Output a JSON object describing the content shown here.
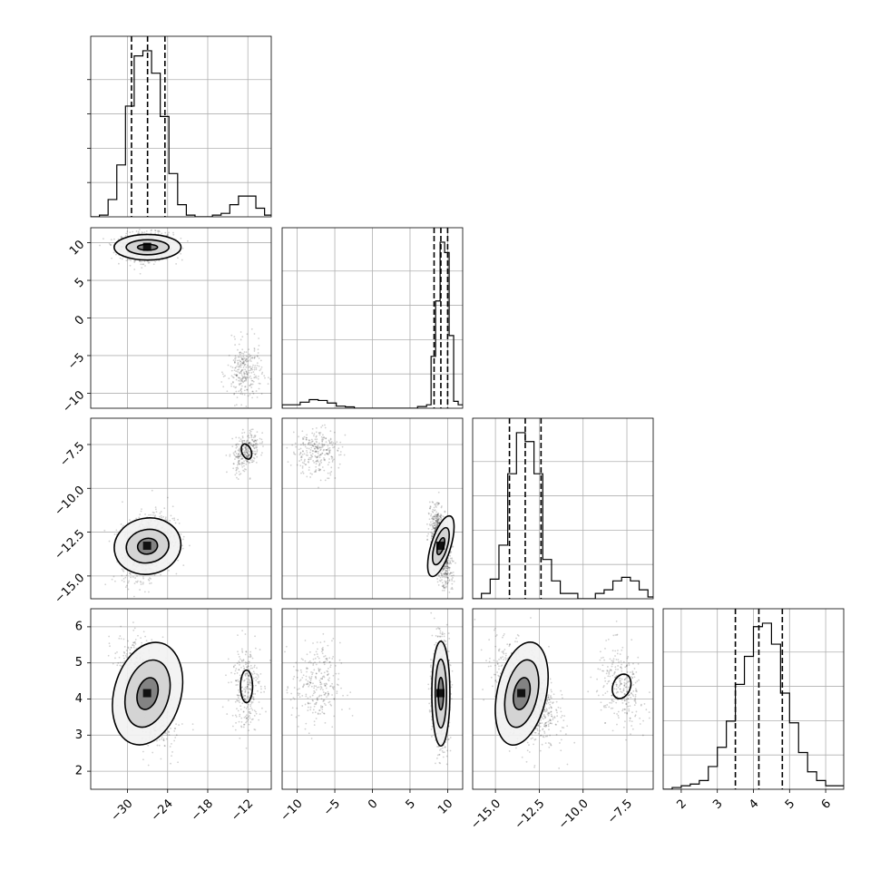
{
  "chart_data": {
    "type": "scatter",
    "subtype": "corner-plot",
    "grid": true,
    "parameters": [
      {
        "range": [
          -35.5,
          -8.5
        ],
        "ticks": [
          -30,
          -24,
          -18,
          -12
        ],
        "tick_labels": [
          "−30",
          "−24",
          "−18",
          "−12"
        ]
      },
      {
        "range": [
          -12,
          12
        ],
        "ticks": [
          -10,
          -5,
          0,
          5,
          10
        ],
        "tick_labels": [
          "−10",
          "−5",
          "0",
          "5",
          "10"
        ]
      },
      {
        "range": [
          -16.3,
          -6.0
        ],
        "ticks": [
          -15.0,
          -12.5,
          -10.0,
          -7.5
        ],
        "tick_labels": [
          "−15.0",
          "−12.5",
          "−10.0",
          "−7.5"
        ]
      },
      {
        "range": [
          1.5,
          6.5
        ],
        "ticks": [
          2,
          3,
          4,
          5,
          6
        ],
        "tick_labels": [
          "2",
          "3",
          "4",
          "5",
          "6"
        ]
      }
    ],
    "histograms": [
      {
        "quantiles": [
          -29.4,
          -27.0,
          -24.4
        ],
        "bins": [
          [
            -35.5,
            0
          ],
          [
            -34.2,
            0.01
          ],
          [
            -32.9,
            0.1
          ],
          [
            -31.6,
            0.3
          ],
          [
            -30.3,
            0.64
          ],
          [
            -29.0,
            0.93
          ],
          [
            -27.7,
            0.96
          ],
          [
            -26.4,
            0.83
          ],
          [
            -25.1,
            0.58
          ],
          [
            -23.8,
            0.25
          ],
          [
            -22.5,
            0.07
          ],
          [
            -21.2,
            0.01
          ],
          [
            -19.9,
            0
          ],
          [
            -18.6,
            0
          ],
          [
            -17.3,
            0.01
          ],
          [
            -16.0,
            0.02
          ],
          [
            -14.7,
            0.07
          ],
          [
            -13.4,
            0.12
          ],
          [
            -12.1,
            0.12
          ],
          [
            -10.8,
            0.05
          ],
          [
            -9.5,
            0.01
          ]
        ]
      },
      {
        "quantiles": [
          8.2,
          9.1,
          10.0
        ],
        "bins": [
          [
            -12,
            0.02
          ],
          [
            -10.8,
            0.02
          ],
          [
            -9.6,
            0.035
          ],
          [
            -8.4,
            0.05
          ],
          [
            -7.2,
            0.045
          ],
          [
            -6.0,
            0.03
          ],
          [
            -4.8,
            0.012
          ],
          [
            -3.6,
            0.008
          ],
          [
            -2.4,
            0
          ],
          [
            -1.2,
            0
          ],
          [
            0,
            0
          ],
          [
            1.2,
            0
          ],
          [
            2.4,
            0
          ],
          [
            3.6,
            0
          ],
          [
            4.8,
            0
          ],
          [
            6.0,
            0.01
          ],
          [
            7.2,
            0.02
          ],
          [
            7.8,
            0.3
          ],
          [
            8.4,
            0.62
          ],
          [
            9.0,
            0.96
          ],
          [
            9.6,
            0.9
          ],
          [
            10.2,
            0.42
          ],
          [
            10.8,
            0.04
          ],
          [
            11.4,
            0.02
          ]
        ]
      },
      {
        "quantiles": [
          -14.2,
          -13.3,
          -12.4
        ],
        "bins": [
          [
            -16.3,
            0
          ],
          [
            -15.8,
            0.03
          ],
          [
            -15.3,
            0.11
          ],
          [
            -14.8,
            0.3
          ],
          [
            -14.3,
            0.7
          ],
          [
            -13.8,
            0.93
          ],
          [
            -13.3,
            0.88
          ],
          [
            -12.8,
            0.7
          ],
          [
            -12.3,
            0.22
          ],
          [
            -11.8,
            0.1
          ],
          [
            -11.3,
            0.03
          ],
          [
            -10.8,
            0.03
          ],
          [
            -10.3,
            0.0
          ],
          [
            -9.8,
            0.0
          ],
          [
            -9.3,
            0.03
          ],
          [
            -8.8,
            0.05
          ],
          [
            -8.3,
            0.1
          ],
          [
            -7.8,
            0.12
          ],
          [
            -7.3,
            0.1
          ],
          [
            -6.8,
            0.05
          ],
          [
            -6.3,
            0.01
          ]
        ]
      },
      {
        "quantiles": [
          3.5,
          4.15,
          4.8
        ],
        "bins": [
          [
            1.5,
            0.0
          ],
          [
            1.75,
            0.01
          ],
          [
            2.0,
            0.02
          ],
          [
            2.25,
            0.03
          ],
          [
            2.5,
            0.05
          ],
          [
            2.75,
            0.13
          ],
          [
            3.0,
            0.24
          ],
          [
            3.25,
            0.39
          ],
          [
            3.5,
            0.6
          ],
          [
            3.75,
            0.76
          ],
          [
            4.0,
            0.93
          ],
          [
            4.25,
            0.95
          ],
          [
            4.5,
            0.83
          ],
          [
            4.75,
            0.55
          ],
          [
            5.0,
            0.38
          ],
          [
            5.25,
            0.21
          ],
          [
            5.5,
            0.1
          ],
          [
            5.75,
            0.05
          ],
          [
            6.0,
            0.02
          ],
          [
            6.25,
            0.02
          ]
        ]
      }
    ],
    "pairs": [
      {
        "x": 0,
        "y": 1,
        "clusters": [
          {
            "mean": [
              -27,
              9.5
            ],
            "sd": [
              1.9,
              0.9
            ],
            "rho": 0.0,
            "n": 1100
          },
          {
            "mean": [
              -12.5,
              -7.3
            ],
            "sd": [
              1.3,
              2.0
            ],
            "rho": 0.0,
            "n": 280
          }
        ],
        "contours": [
          {
            "center": [
              -27.0,
              9.4
            ],
            "rx": 1.5,
            "ry": 0.4,
            "rot": 0
          },
          {
            "center": [
              -27.0,
              9.4
            ],
            "rx": 3.2,
            "ry": 1.0,
            "rot": 0
          },
          {
            "center": [
              -27.0,
              9.4
            ],
            "rx": 5.0,
            "ry": 1.7,
            "rot": 0
          }
        ]
      },
      {
        "x": 0,
        "y": 2,
        "clusters": [
          {
            "mean": [
              -27,
              -13.3
            ],
            "sd": [
              1.9,
              0.9
            ],
            "rho": 0.3,
            "n": 1100
          },
          {
            "mean": [
              -12.3,
              -7.9
            ],
            "sd": [
              1.0,
              0.6
            ],
            "rho": 0.4,
            "n": 280
          }
        ],
        "contours": [
          {
            "center": [
              -27.0,
              -13.3
            ],
            "rx": 1.5,
            "ry": 0.45,
            "rot": 0.3
          },
          {
            "center": [
              -27.0,
              -13.3
            ],
            "rx": 3.2,
            "ry": 0.95,
            "rot": 0.3
          },
          {
            "center": [
              -27.0,
              -13.3
            ],
            "rx": 5.0,
            "ry": 1.6,
            "rot": 0.3
          },
          {
            "center": [
              -12.2,
              -7.9
            ],
            "rx": 0.7,
            "ry": 0.45,
            "rot": 0.6
          }
        ]
      },
      {
        "x": 1,
        "y": 2,
        "clusters": [
          {
            "mean": [
              9.1,
              -13.3
            ],
            "sd": [
              0.65,
              1.0
            ],
            "rho": -0.5,
            "n": 1100
          },
          {
            "mean": [
              -7.5,
              -7.9
            ],
            "sd": [
              1.6,
              0.7
            ],
            "rho": 0.0,
            "n": 280
          }
        ],
        "contours": [
          {
            "center": [
              9.1,
              -13.3
            ],
            "rx": 0.4,
            "ry": 0.5,
            "rot": -0.5
          },
          {
            "center": [
              9.1,
              -13.3
            ],
            "rx": 0.85,
            "ry": 1.1,
            "rot": -0.5
          },
          {
            "center": [
              9.1,
              -13.3
            ],
            "rx": 1.3,
            "ry": 1.8,
            "rot": -0.5
          }
        ]
      },
      {
        "x": 0,
        "y": 3,
        "clusters": [
          {
            "mean": [
              -27,
              4.15
            ],
            "sd": [
              1.9,
              0.65
            ],
            "rho": -0.45,
            "n": 1100
          },
          {
            "mean": [
              -12.3,
              4.35
            ],
            "sd": [
              1.1,
              0.6
            ],
            "rho": 0.0,
            "n": 280
          }
        ],
        "contours": [
          {
            "center": [
              -27.0,
              4.15
            ],
            "rx": 1.5,
            "ry": 0.45,
            "rot": -0.45
          },
          {
            "center": [
              -27.0,
              4.15
            ],
            "rx": 3.2,
            "ry": 0.95,
            "rot": -0.45
          },
          {
            "center": [
              -27.0,
              4.15
            ],
            "rx": 5.0,
            "ry": 1.45,
            "rot": -0.45
          },
          {
            "center": [
              -12.2,
              4.35
            ],
            "rx": 0.9,
            "ry": 0.45,
            "rot": 0.0
          }
        ]
      },
      {
        "x": 1,
        "y": 3,
        "clusters": [
          {
            "mean": [
              9.1,
              4.15
            ],
            "sd": [
              0.55,
              0.7
            ],
            "rho": 0.0,
            "n": 1100
          },
          {
            "mean": [
              -7.5,
              4.35
            ],
            "sd": [
              1.6,
              0.6
            ],
            "rho": 0.0,
            "n": 280
          }
        ],
        "contours": [
          {
            "center": [
              9.1,
              4.15
            ],
            "rx": 0.35,
            "ry": 0.45,
            "rot": 0
          },
          {
            "center": [
              9.1,
              4.15
            ],
            "rx": 0.75,
            "ry": 0.95,
            "rot": 0
          },
          {
            "center": [
              9.1,
              4.15
            ],
            "rx": 1.2,
            "ry": 1.45,
            "rot": 0
          }
        ]
      },
      {
        "x": 2,
        "y": 3,
        "clusters": [
          {
            "mean": [
              -13.3,
              4.15
            ],
            "sd": [
              0.85,
              0.65
            ],
            "rho": -0.35,
            "n": 1100
          },
          {
            "mean": [
              -7.8,
              4.35
            ],
            "sd": [
              0.7,
              0.55
            ],
            "rho": -0.3,
            "n": 280
          }
        ],
        "contours": [
          {
            "center": [
              -13.5,
              4.15
            ],
            "rx": 0.45,
            "ry": 0.45,
            "rot": -0.35
          },
          {
            "center": [
              -13.5,
              4.15
            ],
            "rx": 0.9,
            "ry": 0.95,
            "rot": -0.35
          },
          {
            "center": [
              -13.5,
              4.15
            ],
            "rx": 1.4,
            "ry": 1.45,
            "rot": -0.35
          },
          {
            "center": [
              -7.8,
              4.35
            ],
            "rx": 0.5,
            "ry": 0.35,
            "rot": -0.6
          }
        ]
      }
    ]
  }
}
